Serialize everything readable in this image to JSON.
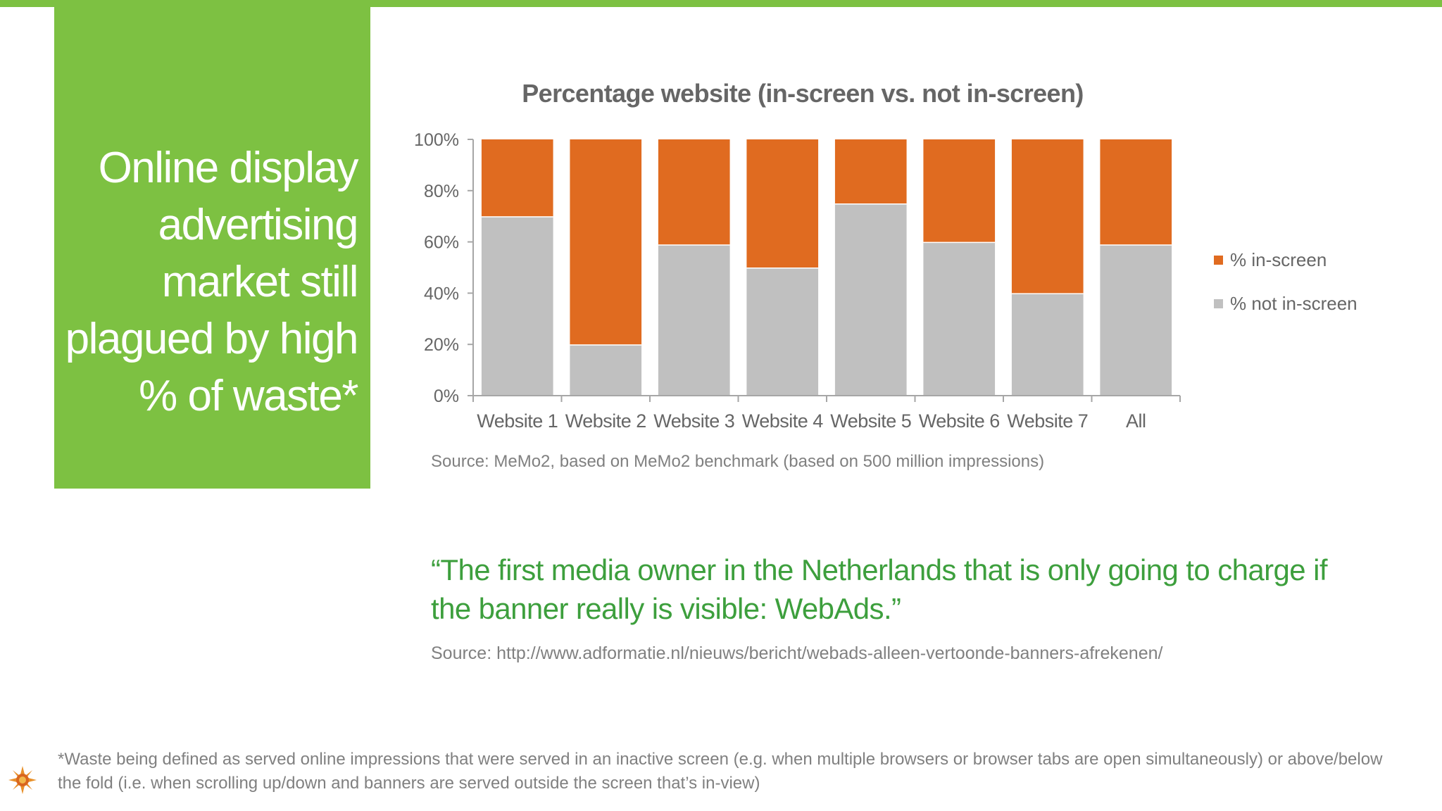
{
  "headline": "Online display advertising market still plagued by high % of waste*",
  "chart_source": "Source: MeMo2, based on MeMo2 benchmark (based on 500 million impressions)",
  "quote": "“The first media owner in the Netherlands that is only going to charge if the banner really is visible: WebAds.”",
  "quote_source": "Source: http://www.adformatie.nl/nieuws/bericht/webads-alleen-vertoonde-banners-afrekenen/",
  "footnote": "*Waste being defined as served online impressions that were served in an inactive screen (e.g. when multiple browsers or browser tabs are open simultaneously) or above/below the fold (i.e. when scrolling up/down and banners are served outside the screen that’s in-view)",
  "colors": {
    "brand_green": "#7dc142",
    "in_screen": "#e06b20",
    "not_in_screen": "#c0c0c0"
  },
  "logo_icon": "sun-logo-icon",
  "chart_data": {
    "type": "bar",
    "stacked": true,
    "title": "Percentage website (in-screen vs. not in-screen)",
    "xlabel": "",
    "ylabel": "",
    "ylim": [
      0,
      100
    ],
    "yticks": [
      "0%",
      "20%",
      "40%",
      "60%",
      "80%",
      "100%"
    ],
    "categories": [
      "Website 1",
      "Website 2",
      "Website 3",
      "Website 4",
      "Website 5",
      "Website 6",
      "Website 7",
      "All"
    ],
    "series": [
      {
        "name": "% not in-screen",
        "color": "#c0c0c0",
        "values": [
          70,
          20,
          59,
          50,
          75,
          60,
          40,
          59
        ]
      },
      {
        "name": "% in-screen",
        "color": "#e06b20",
        "values": [
          30,
          80,
          41,
          50,
          25,
          40,
          60,
          41
        ]
      }
    ],
    "legend_order": [
      "% in-screen",
      "% not in-screen"
    ],
    "legend_position": "right",
    "grid": false
  }
}
